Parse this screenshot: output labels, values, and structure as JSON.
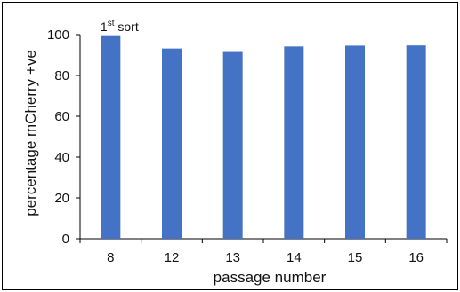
{
  "chart_data": {
    "type": "bar",
    "categories": [
      "8",
      "12",
      "13",
      "14",
      "15",
      "16"
    ],
    "values": [
      99.7,
      93.2,
      91.5,
      94.2,
      94.6,
      94.7
    ],
    "xlabel": "passage number",
    "ylabel": "percentage mCherry +ve",
    "ylim": [
      0,
      100
    ],
    "yticks": [
      0,
      20,
      40,
      60,
      80,
      100
    ],
    "grid": false,
    "legend": "none",
    "annotations": [
      {
        "category": "8",
        "text": "1",
        "superscript": "st",
        "suffix": " sort"
      }
    ],
    "colors": {
      "bars": "#4472C4",
      "axes": "#000000",
      "annotation": "#1f2a5a",
      "frame": "#000000"
    }
  }
}
